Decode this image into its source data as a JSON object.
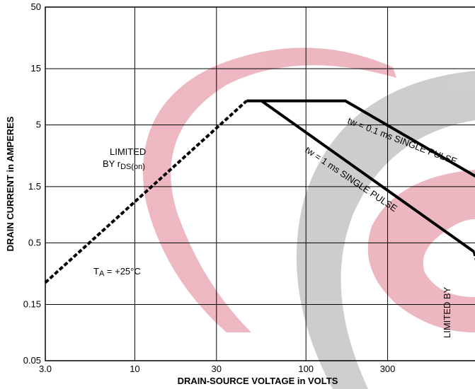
{
  "chart_data": {
    "type": "line",
    "title": "",
    "xlabel": "DRAIN-SOURCE VOLTAGE in VOLTS",
    "ylabel": "DRAIN CURRENT in AMPERES",
    "x_scale": "log",
    "y_scale": "log",
    "xlim": [
      3.0,
      1100
    ],
    "ylim": [
      0.05,
      50
    ],
    "grid": true,
    "x_ticks": [
      3.0,
      10,
      30,
      100,
      300
    ],
    "x_tick_labels": [
      "3.0",
      "10",
      "30",
      "100",
      "300"
    ],
    "y_ticks": [
      0.05,
      0.15,
      0.5,
      1.5,
      5,
      15,
      50
    ],
    "y_tick_labels": [
      "0.05",
      "0.15",
      "0.5",
      "1.5",
      "5",
      "15",
      "50"
    ],
    "series": [
      {
        "name": "",
        "style": "dashed",
        "x": [
          3.0,
          45
        ],
        "y": [
          0.23,
          8
        ]
      },
      {
        "name": "tw = 0.1 ms SINGLE PULSE",
        "style": "solid",
        "x": [
          45,
          170,
          1000
        ],
        "y": [
          8,
          8,
          1.8
        ]
      },
      {
        "name": "tw = 1 ms SINGLE PULSE",
        "style": "solid",
        "x": [
          55,
          960
        ],
        "y": [
          8,
          0.42
        ]
      },
      {
        "name": "",
        "style": "dashed",
        "x": [
          960,
          1100
        ],
        "y": [
          0.42,
          0.2
        ]
      }
    ],
    "annotations": {
      "limited_rds_line1": "LIMITED",
      "limited_rds_line2_pre": "BY r",
      "limited_rds_line2_sub": "DS(on)",
      "ta_pre": "T",
      "ta_sub": "A",
      "ta_post": " = +25°C",
      "pulse01_label": "tw = 0.1 ms SINGLE PULSE",
      "pulse1_label": "tw = 1 ms SINGLE PULSE",
      "limited_by_right": "LIMITED BY"
    }
  },
  "colors": {
    "watermark_pink": "#e8a0ad",
    "watermark_gray": "#bdbdbd",
    "grid": "#000000"
  }
}
